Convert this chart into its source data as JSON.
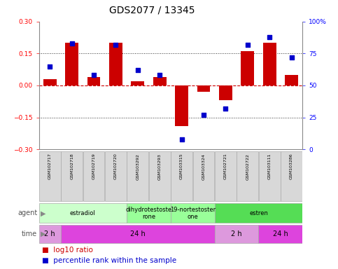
{
  "title": "GDS2077 / 13345",
  "samples": [
    "GSM102717",
    "GSM102718",
    "GSM102719",
    "GSM102720",
    "GSM103292",
    "GSM103293",
    "GSM103315",
    "GSM103324",
    "GSM102721",
    "GSM102722",
    "GSM103111",
    "GSM103286"
  ],
  "log10_ratio": [
    0.03,
    0.2,
    0.04,
    0.2,
    0.02,
    0.04,
    -0.19,
    -0.03,
    -0.07,
    0.16,
    0.2,
    0.05
  ],
  "percentile": [
    65,
    83,
    58,
    82,
    62,
    58,
    8,
    27,
    32,
    82,
    88,
    72
  ],
  "ylim_left": [
    -0.3,
    0.3
  ],
  "ylim_right": [
    0,
    100
  ],
  "yticks_left": [
    -0.3,
    -0.15,
    0.0,
    0.15,
    0.3
  ],
  "yticks_right": [
    0,
    25,
    50,
    75,
    100
  ],
  "ytick_right_labels": [
    "0",
    "25",
    "50",
    "75",
    "100%"
  ],
  "hlines": [
    0.15,
    -0.15
  ],
  "hline_zero_color": "#cc0000",
  "hline_dot_color": "#333333",
  "bar_color": "#cc0000",
  "dot_color": "#0000cc",
  "bar_width": 0.6,
  "dot_size": 22,
  "agent_groups": [
    {
      "label": "estradiol",
      "start": 0,
      "end": 4,
      "color": "#ccffcc"
    },
    {
      "label": "dihydrotestoste\nrone",
      "start": 4,
      "end": 6,
      "color": "#99ff99"
    },
    {
      "label": "19-nortestoster\none",
      "start": 6,
      "end": 8,
      "color": "#99ff99"
    },
    {
      "label": "estren",
      "start": 8,
      "end": 12,
      "color": "#55dd55"
    }
  ],
  "time_groups": [
    {
      "label": "2 h",
      "start": 0,
      "end": 1,
      "color": "#dd99dd"
    },
    {
      "label": "24 h",
      "start": 1,
      "end": 8,
      "color": "#dd44dd"
    },
    {
      "label": "2 h",
      "start": 8,
      "end": 10,
      "color": "#dd99dd"
    },
    {
      "label": "24 h",
      "start": 10,
      "end": 12,
      "color": "#dd44dd"
    }
  ],
  "legend_red": "log10 ratio",
  "legend_blue": "percentile rank within the sample",
  "bg_color": "#ffffff",
  "plot_bg": "#ffffff",
  "sample_bg": "#d8d8d8",
  "sample_border": "#aaaaaa",
  "title_fontsize": 10,
  "tick_fontsize": 6.5,
  "sample_fontsize": 4.5,
  "agent_fontsize": 6,
  "time_fontsize": 7,
  "legend_fontsize": 7.5,
  "row_label_fontsize": 7
}
